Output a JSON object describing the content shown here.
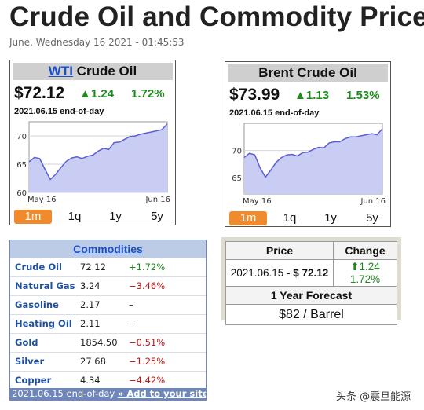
{
  "header": {
    "title": "Crude Oil and Commodity Prices",
    "datetime": "June, Wednesday 16 2021 - 01:45:53"
  },
  "wti": {
    "title_link": "WTI",
    "title_rest": " Crude Oil",
    "price": "$72.12",
    "change": "▲1.24",
    "pct": "1.72%",
    "date": "2021.06.15 end-of-day",
    "x_start": "May 16",
    "x_end": "Jun 16",
    "tabs": [
      "1m",
      "1q",
      "1y",
      "5y"
    ]
  },
  "brent": {
    "title": "Brent Crude Oil",
    "price": "$73.99",
    "change": "▲1.13",
    "pct": "1.53%",
    "date": "2021.06.15 end-of-day",
    "x_start": "May 16",
    "x_end": "Jun 16",
    "tabs": [
      "1m",
      "1q",
      "1y",
      "5y"
    ]
  },
  "chart_data": [
    {
      "type": "area",
      "name": "WTI Crude Oil 1m",
      "x_range": [
        "May 16",
        "Jun 16"
      ],
      "ylim": [
        60,
        72.5
      ],
      "yticks": [
        60,
        65,
        70
      ],
      "values": [
        65.4,
        66.2,
        66.0,
        64.1,
        62.3,
        63.2,
        64.4,
        65.5,
        66.1,
        66.3,
        66.0,
        66.4,
        66.6,
        67.3,
        67.8,
        67.6,
        68.8,
        68.9,
        69.4,
        69.9,
        70.0,
        70.3,
        70.5,
        70.7,
        70.9,
        71.1,
        72.1
      ]
    },
    {
      "type": "area",
      "name": "Brent Crude Oil 1m",
      "x_range": [
        "May 16",
        "Jun 16"
      ],
      "ylim": [
        62,
        75
      ],
      "yticks": [
        65,
        70
      ],
      "values": [
        68.7,
        69.5,
        69.2,
        66.8,
        65.1,
        66.4,
        67.8,
        68.7,
        69.2,
        69.3,
        69.0,
        69.6,
        69.7,
        70.2,
        70.6,
        70.5,
        71.4,
        71.6,
        71.6,
        72.2,
        72.5,
        72.5,
        72.7,
        72.9,
        73.1,
        72.9,
        74.0
      ]
    }
  ],
  "commodities": {
    "title": "Commodities",
    "rows": [
      {
        "name": "Crude Oil",
        "value": "72.12",
        "change": "+1.72%",
        "dir": "up"
      },
      {
        "name": "Natural Gas",
        "value": "3.24",
        "change": "−3.46%",
        "dir": "down"
      },
      {
        "name": "Gasoline",
        "value": "2.17",
        "change": "–",
        "dir": "flat"
      },
      {
        "name": "Heating Oil",
        "value": "2.11",
        "change": "–",
        "dir": "flat"
      },
      {
        "name": "Gold",
        "value": "1854.50",
        "change": "−0.51%",
        "dir": "down"
      },
      {
        "name": "Silver",
        "value": "27.68",
        "change": "−1.25%",
        "dir": "down"
      },
      {
        "name": "Copper",
        "value": "4.34",
        "change": "−4.42%",
        "dir": "down"
      }
    ],
    "footer_date": "2021.06.15 end-of-day",
    "footer_link": "» Add to your site"
  },
  "forecast": {
    "price_header": "Price",
    "change_header": "Change",
    "price_prefix": "2021.06.15 - ",
    "price_value": "$ 72.12",
    "change_arrow": "⬆",
    "change_value": "1.24 1.72%",
    "forecast_header": "1 Year Forecast",
    "forecast_value": "$82 / Barrel"
  },
  "watermark": "头条 @震旦能源",
  "colors": {
    "positive": "#1e8a1e",
    "negative": "#c01515",
    "active_tab": "#f08a2c",
    "chart_fill": "#c9ccf3",
    "chart_line": "#5b5fd6"
  }
}
